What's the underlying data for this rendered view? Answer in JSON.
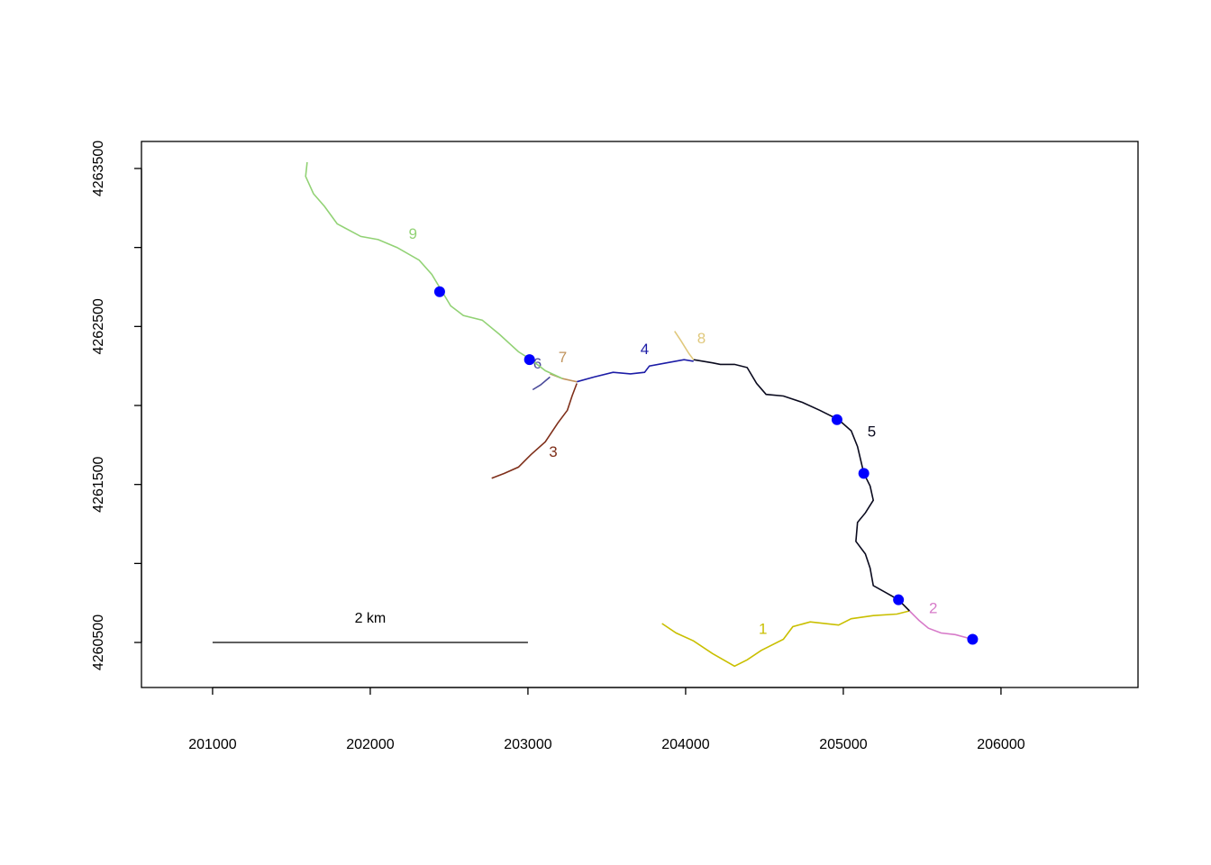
{
  "chart_data": {
    "type": "line",
    "xlim": [
      200549,
      206869
    ],
    "ylim": [
      4260215,
      4263671
    ],
    "xticks": [
      201000,
      202000,
      203000,
      204000,
      205000,
      206000
    ],
    "yticks": [
      4260500,
      {
        "value": 4261000,
        "label": null
      },
      4261500,
      {
        "value": 4262000,
        "label": null
      },
      4262500,
      {
        "value": 4263000,
        "label": null
      },
      4263500
    ],
    "series": [
      {
        "name": "1",
        "color": "#c9bf00",
        "label_at": [
          204490,
          4260580
        ],
        "x": [
          203850,
          203940,
          204050,
          204170,
          204310,
          204390,
          204480,
          204620,
          204680,
          204790,
          204970,
          205050,
          205190,
          205340,
          205420
        ],
        "values": [
          4260620,
          4260560,
          4260510,
          4260430,
          4260350,
          4260390,
          4260450,
          4260520,
          4260600,
          4260630,
          4260610,
          4260650,
          4260670,
          4260680,
          4260700
        ]
      },
      {
        "name": "2",
        "color": "#d77ac9",
        "label_at": [
          205570,
          4260710
        ],
        "x": [
          205420,
          205480,
          205540,
          205620,
          205710,
          205820
        ],
        "values": [
          4260700,
          4260640,
          4260590,
          4260560,
          4260550,
          4260520
        ]
      },
      {
        "name": "3",
        "color": "#7f2f1a",
        "label_at": [
          203160,
          4261700
        ],
        "x": [
          202770,
          202850,
          202940,
          203020,
          203110,
          203190,
          203250,
          203280,
          203310
        ],
        "values": [
          4261540,
          4261570,
          4261610,
          4261690,
          4261770,
          4261890,
          4261970,
          4262060,
          4262140
        ]
      },
      {
        "name": "4",
        "color": "#1c1ca6",
        "label_at": [
          203740,
          4262350
        ],
        "x": [
          203310,
          203420,
          203540,
          203650,
          203740,
          203770,
          203880,
          203990,
          204050
        ],
        "values": [
          4262150,
          4262180,
          4262210,
          4262200,
          4262210,
          4262250,
          4262270,
          4262290,
          4262280
        ]
      },
      {
        "name": "5",
        "color": "#0a0a1e",
        "label_at": [
          205180,
          4261830
        ],
        "x": [
          204050,
          204170,
          204220,
          204310,
          204390,
          204450,
          204510,
          204620,
          204740,
          204850,
          204970,
          205050,
          205090,
          205130,
          205170,
          205190,
          205140,
          205090,
          205080,
          205140,
          205170,
          205190,
          205280,
          205350,
          205420
        ],
        "values": [
          4262290,
          4262270,
          4262260,
          4262260,
          4262240,
          4262140,
          4262070,
          4262060,
          4262020,
          4261970,
          4261910,
          4261840,
          4261740,
          4261570,
          4261490,
          4261400,
          4261320,
          4261260,
          4261140,
          4261060,
          4260970,
          4260860,
          4260810,
          4260770,
          4260700
        ]
      },
      {
        "name": "6",
        "color": "#4b4b9a",
        "label_at": [
          203060,
          4262260
        ],
        "x": [
          203030,
          203080,
          203140
        ],
        "values": [
          4262100,
          4262130,
          4262180
        ]
      },
      {
        "name": "7",
        "color": "#c0935c",
        "label_at": [
          203220,
          4262300
        ],
        "x": [
          203140,
          203220,
          203310
        ],
        "values": [
          4262200,
          4262170,
          4262150
        ]
      },
      {
        "name": "8",
        "color": "#e0c87c",
        "label_at": [
          204100,
          4262420
        ],
        "x": [
          203930,
          203970,
          204020,
          204050
        ],
        "values": [
          4262470,
          4262410,
          4262330,
          4262290
        ]
      },
      {
        "name": "9",
        "color": "#92d275",
        "label_at": [
          202270,
          4263080
        ],
        "x": [
          201600,
          201590,
          201640,
          201710,
          201790,
          201940,
          202050,
          202170,
          202310,
          202390,
          202450,
          202510,
          202590,
          202710,
          202820,
          202940,
          203020,
          203110,
          203220
        ],
        "values": [
          4263540,
          4263450,
          4263340,
          4263260,
          4263150,
          4263070,
          4263050,
          4263000,
          4262920,
          4262830,
          4262730,
          4262630,
          4262570,
          4262540,
          4262450,
          4262340,
          4262290,
          4262220,
          4262170
        ]
      }
    ],
    "points": {
      "color": "#0000ff",
      "x": [
        202440,
        203010,
        204960,
        205130,
        205350,
        205820
      ],
      "values": [
        4262720,
        4262290,
        4261910,
        4261570,
        4260770,
        4260520
      ]
    },
    "scale_bar": {
      "label": "2 km",
      "x": [
        201000,
        203000
      ],
      "y": 4260500,
      "label_at": [
        202000,
        4260650
      ]
    }
  }
}
